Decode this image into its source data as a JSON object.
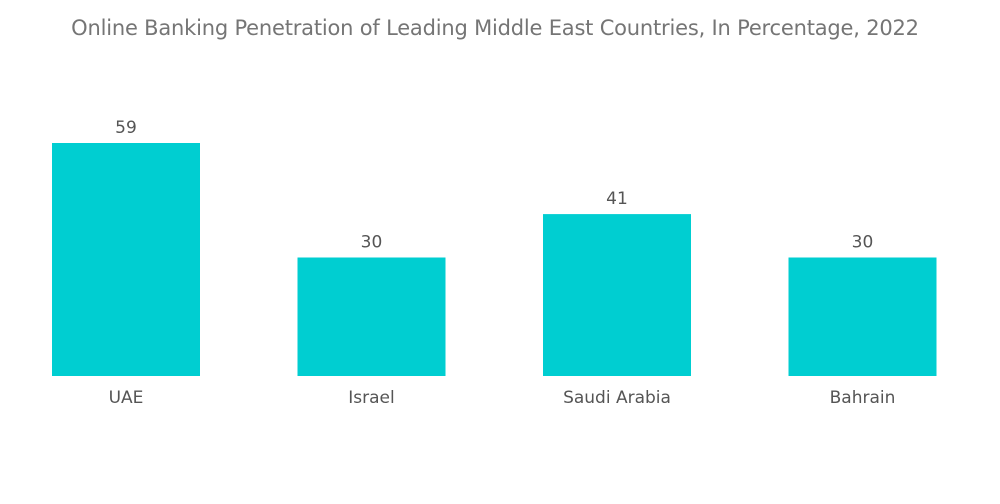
{
  "chart_data": {
    "type": "bar",
    "title": "Online Banking Penetration of Leading Middle East Countries, In Percentage, 2022",
    "categories": [
      "UAE",
      "Israel",
      "Saudi Arabia",
      "Bahrain"
    ],
    "values": [
      59,
      30,
      41,
      30
    ],
    "ylim": [
      0,
      59
    ],
    "grid": false,
    "data_labels": true,
    "bar_color": "#00CED1"
  }
}
